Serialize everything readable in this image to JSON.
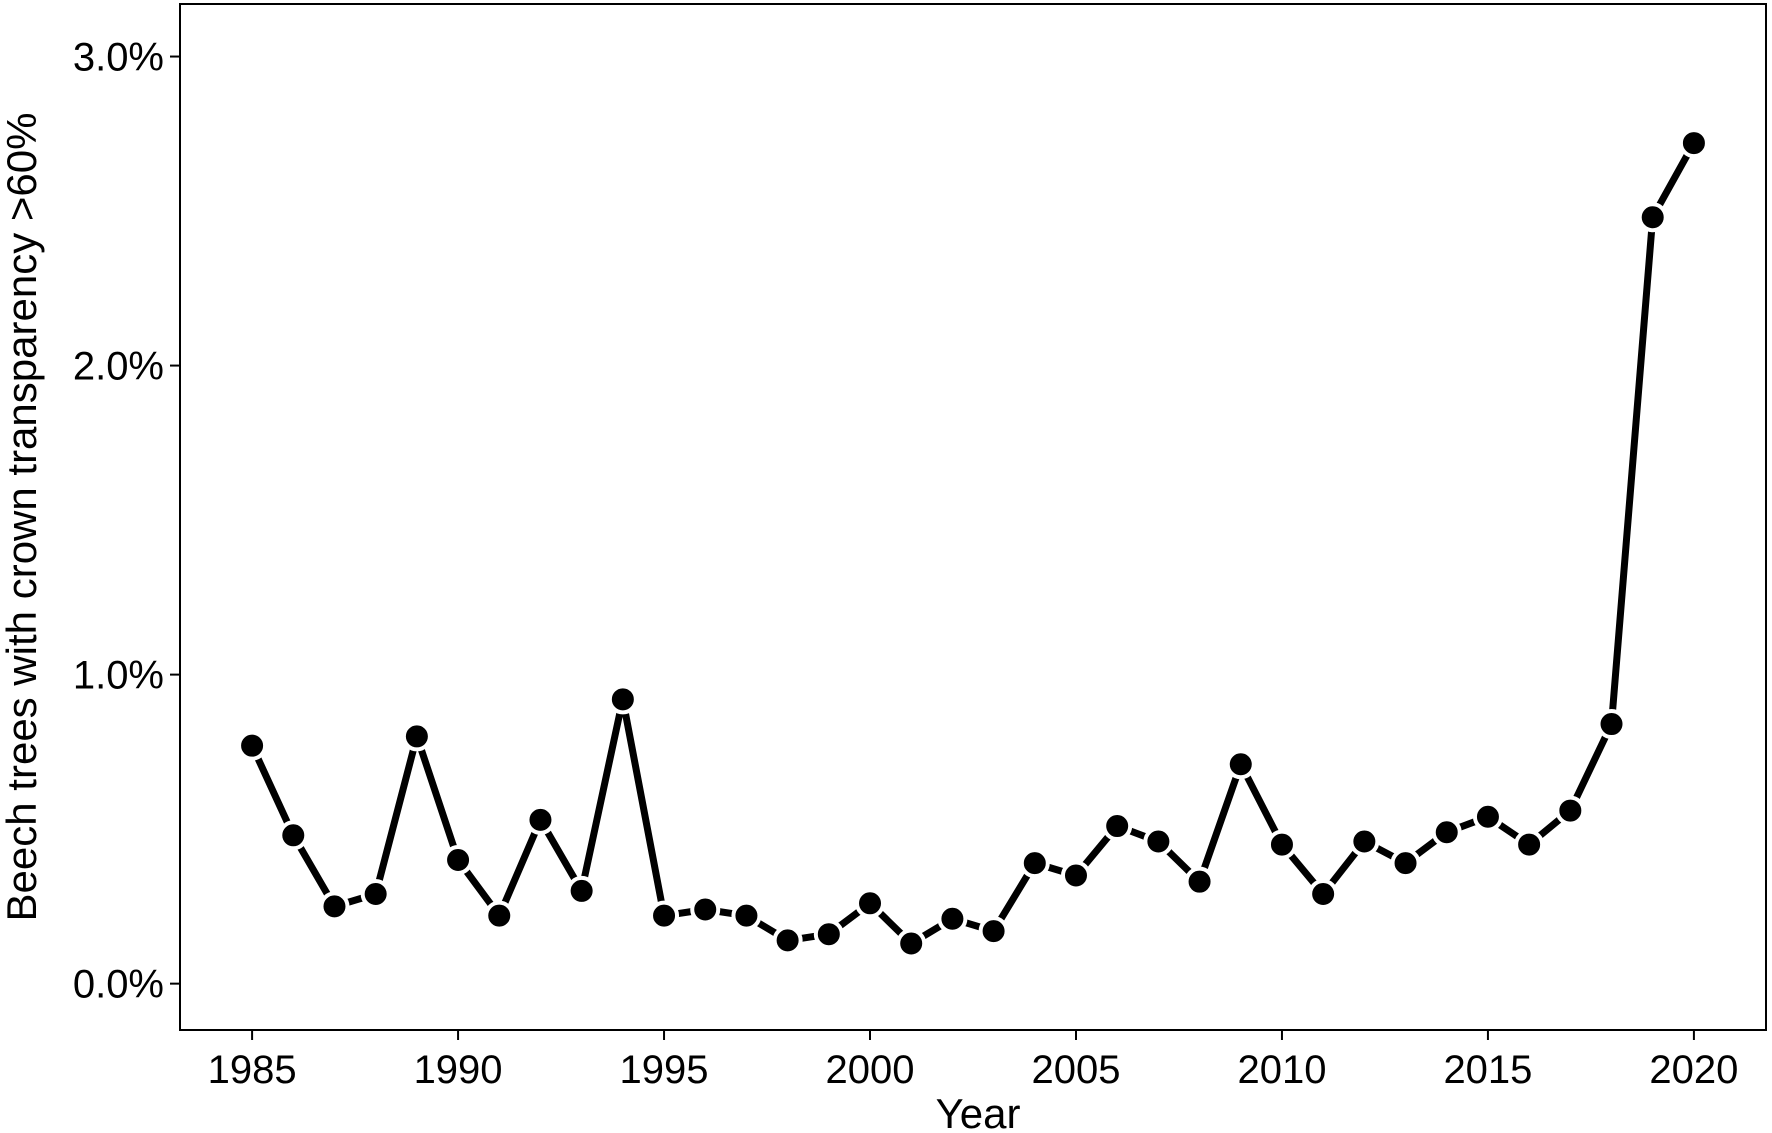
{
  "chart_data": {
    "type": "line",
    "title": "",
    "xlabel": "Year",
    "ylabel": "Beech trees with crown transparency >60%",
    "x": [
      1985,
      1986,
      1987,
      1988,
      1989,
      1990,
      1991,
      1992,
      1993,
      1994,
      1995,
      1996,
      1997,
      1998,
      1999,
      2000,
      2001,
      2002,
      2003,
      2004,
      2005,
      2006,
      2007,
      2008,
      2009,
      2010,
      2011,
      2012,
      2013,
      2014,
      2015,
      2016,
      2017,
      2018,
      2019,
      2020
    ],
    "series": [
      {
        "values": [
          0.77,
          0.48,
          0.25,
          0.29,
          0.8,
          0.4,
          0.22,
          0.53,
          0.3,
          0.92,
          0.22,
          0.24,
          0.22,
          0.14,
          0.16,
          0.26,
          0.13,
          0.21,
          0.17,
          0.39,
          0.35,
          0.51,
          0.46,
          0.33,
          0.71,
          0.45,
          0.29,
          0.46,
          0.39,
          0.49,
          0.54,
          0.45,
          0.56,
          0.84,
          2.48,
          2.72
        ],
        "color": "#000000"
      }
    ],
    "xticks": [
      1985,
      1990,
      1995,
      2000,
      2005,
      2010,
      2015,
      2020
    ],
    "xtick_labels": [
      "1985",
      "1990",
      "1995",
      "2000",
      "2005",
      "2010",
      "2015",
      "2020"
    ],
    "yticks": [
      0,
      1,
      2,
      3
    ],
    "ytick_labels": [
      "0.0%",
      "1.0%",
      "2.0%",
      "3.0%"
    ],
    "xlim": [
      1983.25,
      2021.75
    ],
    "ylim": [
      -0.15,
      3.17
    ],
    "grid": false,
    "legend": "none"
  }
}
